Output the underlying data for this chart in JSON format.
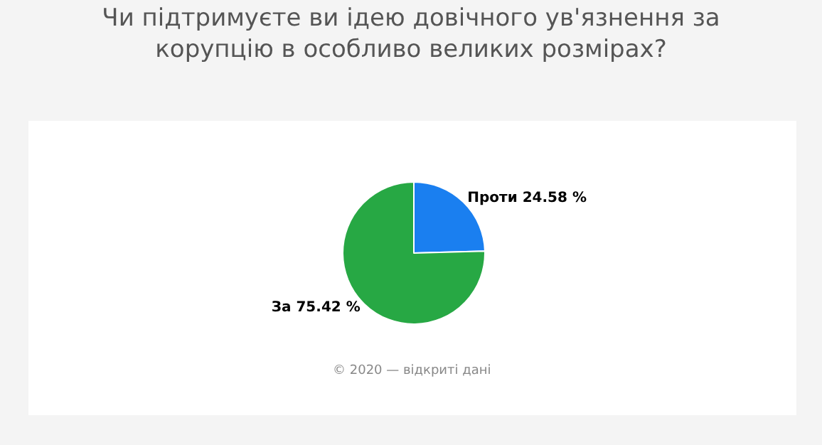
{
  "chart_data": {
    "type": "pie",
    "title": "Чи підтримуєте ви ідею довічного ув'язнення за\nкорупцію в особливо великих розмірах?",
    "categories": [
      "Проти",
      "За"
    ],
    "values": [
      24.58,
      75.42
    ],
    "value_labels": [
      "24.58 %",
      "75.42 %"
    ],
    "colors": [
      "#1a7ff0",
      "#27a844"
    ],
    "legend": false,
    "annotations": [
      "© 2020 — відкриті дані"
    ]
  }
}
